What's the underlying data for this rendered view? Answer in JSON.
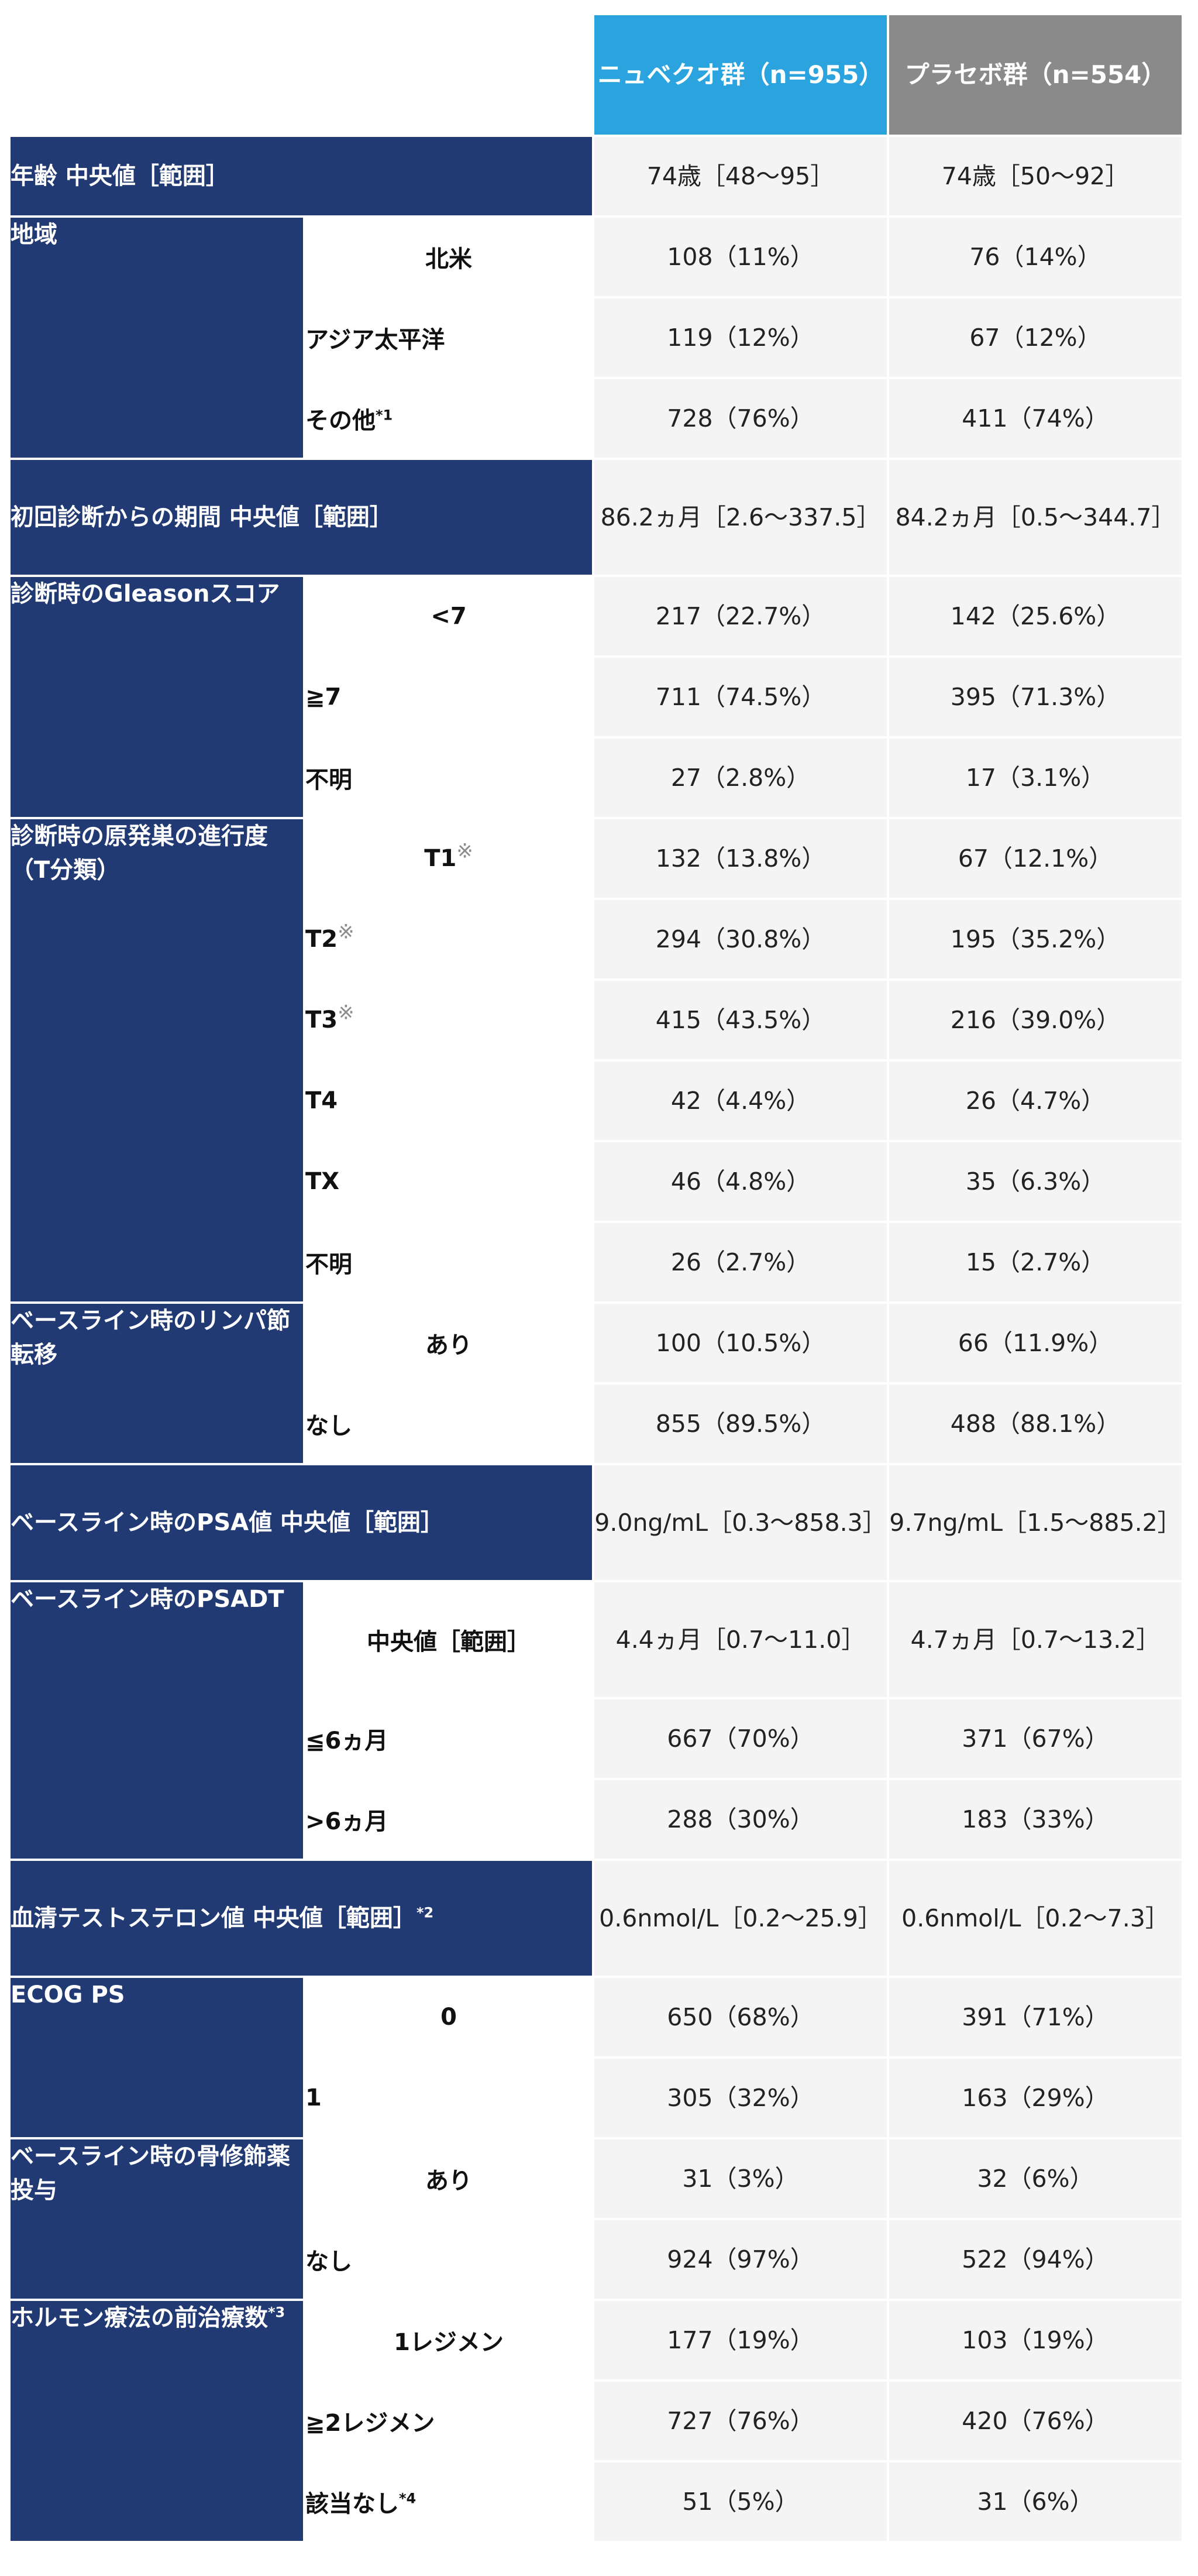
{
  "header": {
    "arm_a": "ニュベクオ群（n=955）",
    "arm_b": "プラセボ群（n=554）"
  },
  "rows": {
    "age": {
      "label": "年齢 中央値［範囲］",
      "a": "74歳［48〜95］",
      "b": "74歳［50〜92］"
    },
    "region": {
      "label": "地域",
      "na": {
        "label": "北米",
        "a": "108（11%）",
        "b": "76（14%）"
      },
      "ap": {
        "label": "アジア太平洋",
        "a": "119（12%）",
        "b": "67（12%）"
      },
      "other": {
        "label": "その他",
        "note": "*1",
        "a": "728（76%）",
        "b": "411（74%）"
      }
    },
    "duration": {
      "label": "初回診断からの期間 中央値［範囲］",
      "a": "86.2ヵ月［2.6〜337.5］",
      "b": "84.2ヵ月［0.5〜344.7］"
    },
    "gleason": {
      "label": "診断時のGleasonスコア",
      "lt7": {
        "label": "<7",
        "a": "217（22.7%）",
        "b": "142（25.6%）"
      },
      "ge7": {
        "label": "≧7",
        "a": "711（74.5%）",
        "b": "395（71.3%）"
      },
      "unknown": {
        "label": "不明",
        "a": "27（2.8%）",
        "b": "17（3.1%）"
      }
    },
    "tstage": {
      "label": "診断時の原発巣の進行度（T分類）",
      "mark": "※",
      "t1": {
        "label": "T1",
        "a": "132（13.8%）",
        "b": "67（12.1%）"
      },
      "t2": {
        "label": "T2",
        "a": "294（30.8%）",
        "b": "195（35.2%）"
      },
      "t3": {
        "label": "T3",
        "a": "415（43.5%）",
        "b": "216（39.0%）"
      },
      "t4": {
        "label": "T4",
        "a": "42（4.4%）",
        "b": "26（4.7%）"
      },
      "tx": {
        "label": "TX",
        "a": "46（4.8%）",
        "b": "35（6.3%）"
      },
      "unknown": {
        "label": "不明",
        "a": "26（2.7%）",
        "b": "15（2.7%）"
      }
    },
    "lymph": {
      "label": "ベースライン時のリンパ節転移",
      "yes": {
        "label": "あり",
        "a": "100（10.5%）",
        "b": "66（11.9%）"
      },
      "no": {
        "label": "なし",
        "a": "855（89.5%）",
        "b": "488（88.1%）"
      }
    },
    "psa": {
      "label": "ベースライン時のPSA値 中央値［範囲］",
      "a": "9.0ng/mL［0.3〜858.3］",
      "b": "9.7ng/mL［1.5〜885.2］"
    },
    "psadt": {
      "label": "ベースライン時のPSADT",
      "median": {
        "label": "中央値［範囲］",
        "a": "4.4ヵ月［0.7〜11.0］",
        "b": "4.7ヵ月［0.7〜13.2］"
      },
      "le6": {
        "label": "≦6ヵ月",
        "a": "667（70%）",
        "b": "371（67%）"
      },
      "gt6": {
        "label": ">6ヵ月",
        "a": "288（30%）",
        "b": "183（33%）"
      }
    },
    "testosterone": {
      "label": "血清テストステロン値 中央値［範囲］",
      "note": "*2",
      "a": "0.6nmol/L［0.2〜25.9］",
      "b": "0.6nmol/L［0.2〜7.3］"
    },
    "ecog": {
      "label": "ECOG PS",
      "ps0": {
        "label": "0",
        "a": "650（68%）",
        "b": "391（71%）"
      },
      "ps1": {
        "label": "1",
        "a": "305（32%）",
        "b": "163（29%）"
      }
    },
    "bone": {
      "label": "ベースライン時の骨修飾薬投与",
      "yes": {
        "label": "あり",
        "a": "31（3%）",
        "b": "32（6%）"
      },
      "no": {
        "label": "なし",
        "a": "924（97%）",
        "b": "522（94%）"
      }
    },
    "hormone": {
      "label": "ホルモン療法の前治療数",
      "note": "*3",
      "one": {
        "label": "1レジメン",
        "a": "177（19%）",
        "b": "103（19%）"
      },
      "two": {
        "label": "≧2レジメン",
        "a": "727（76%）",
        "b": "420（76%）"
      },
      "none": {
        "label": "該当なし",
        "note": "*4",
        "a": "51（5%）",
        "b": "31（6%）"
      }
    }
  }
}
